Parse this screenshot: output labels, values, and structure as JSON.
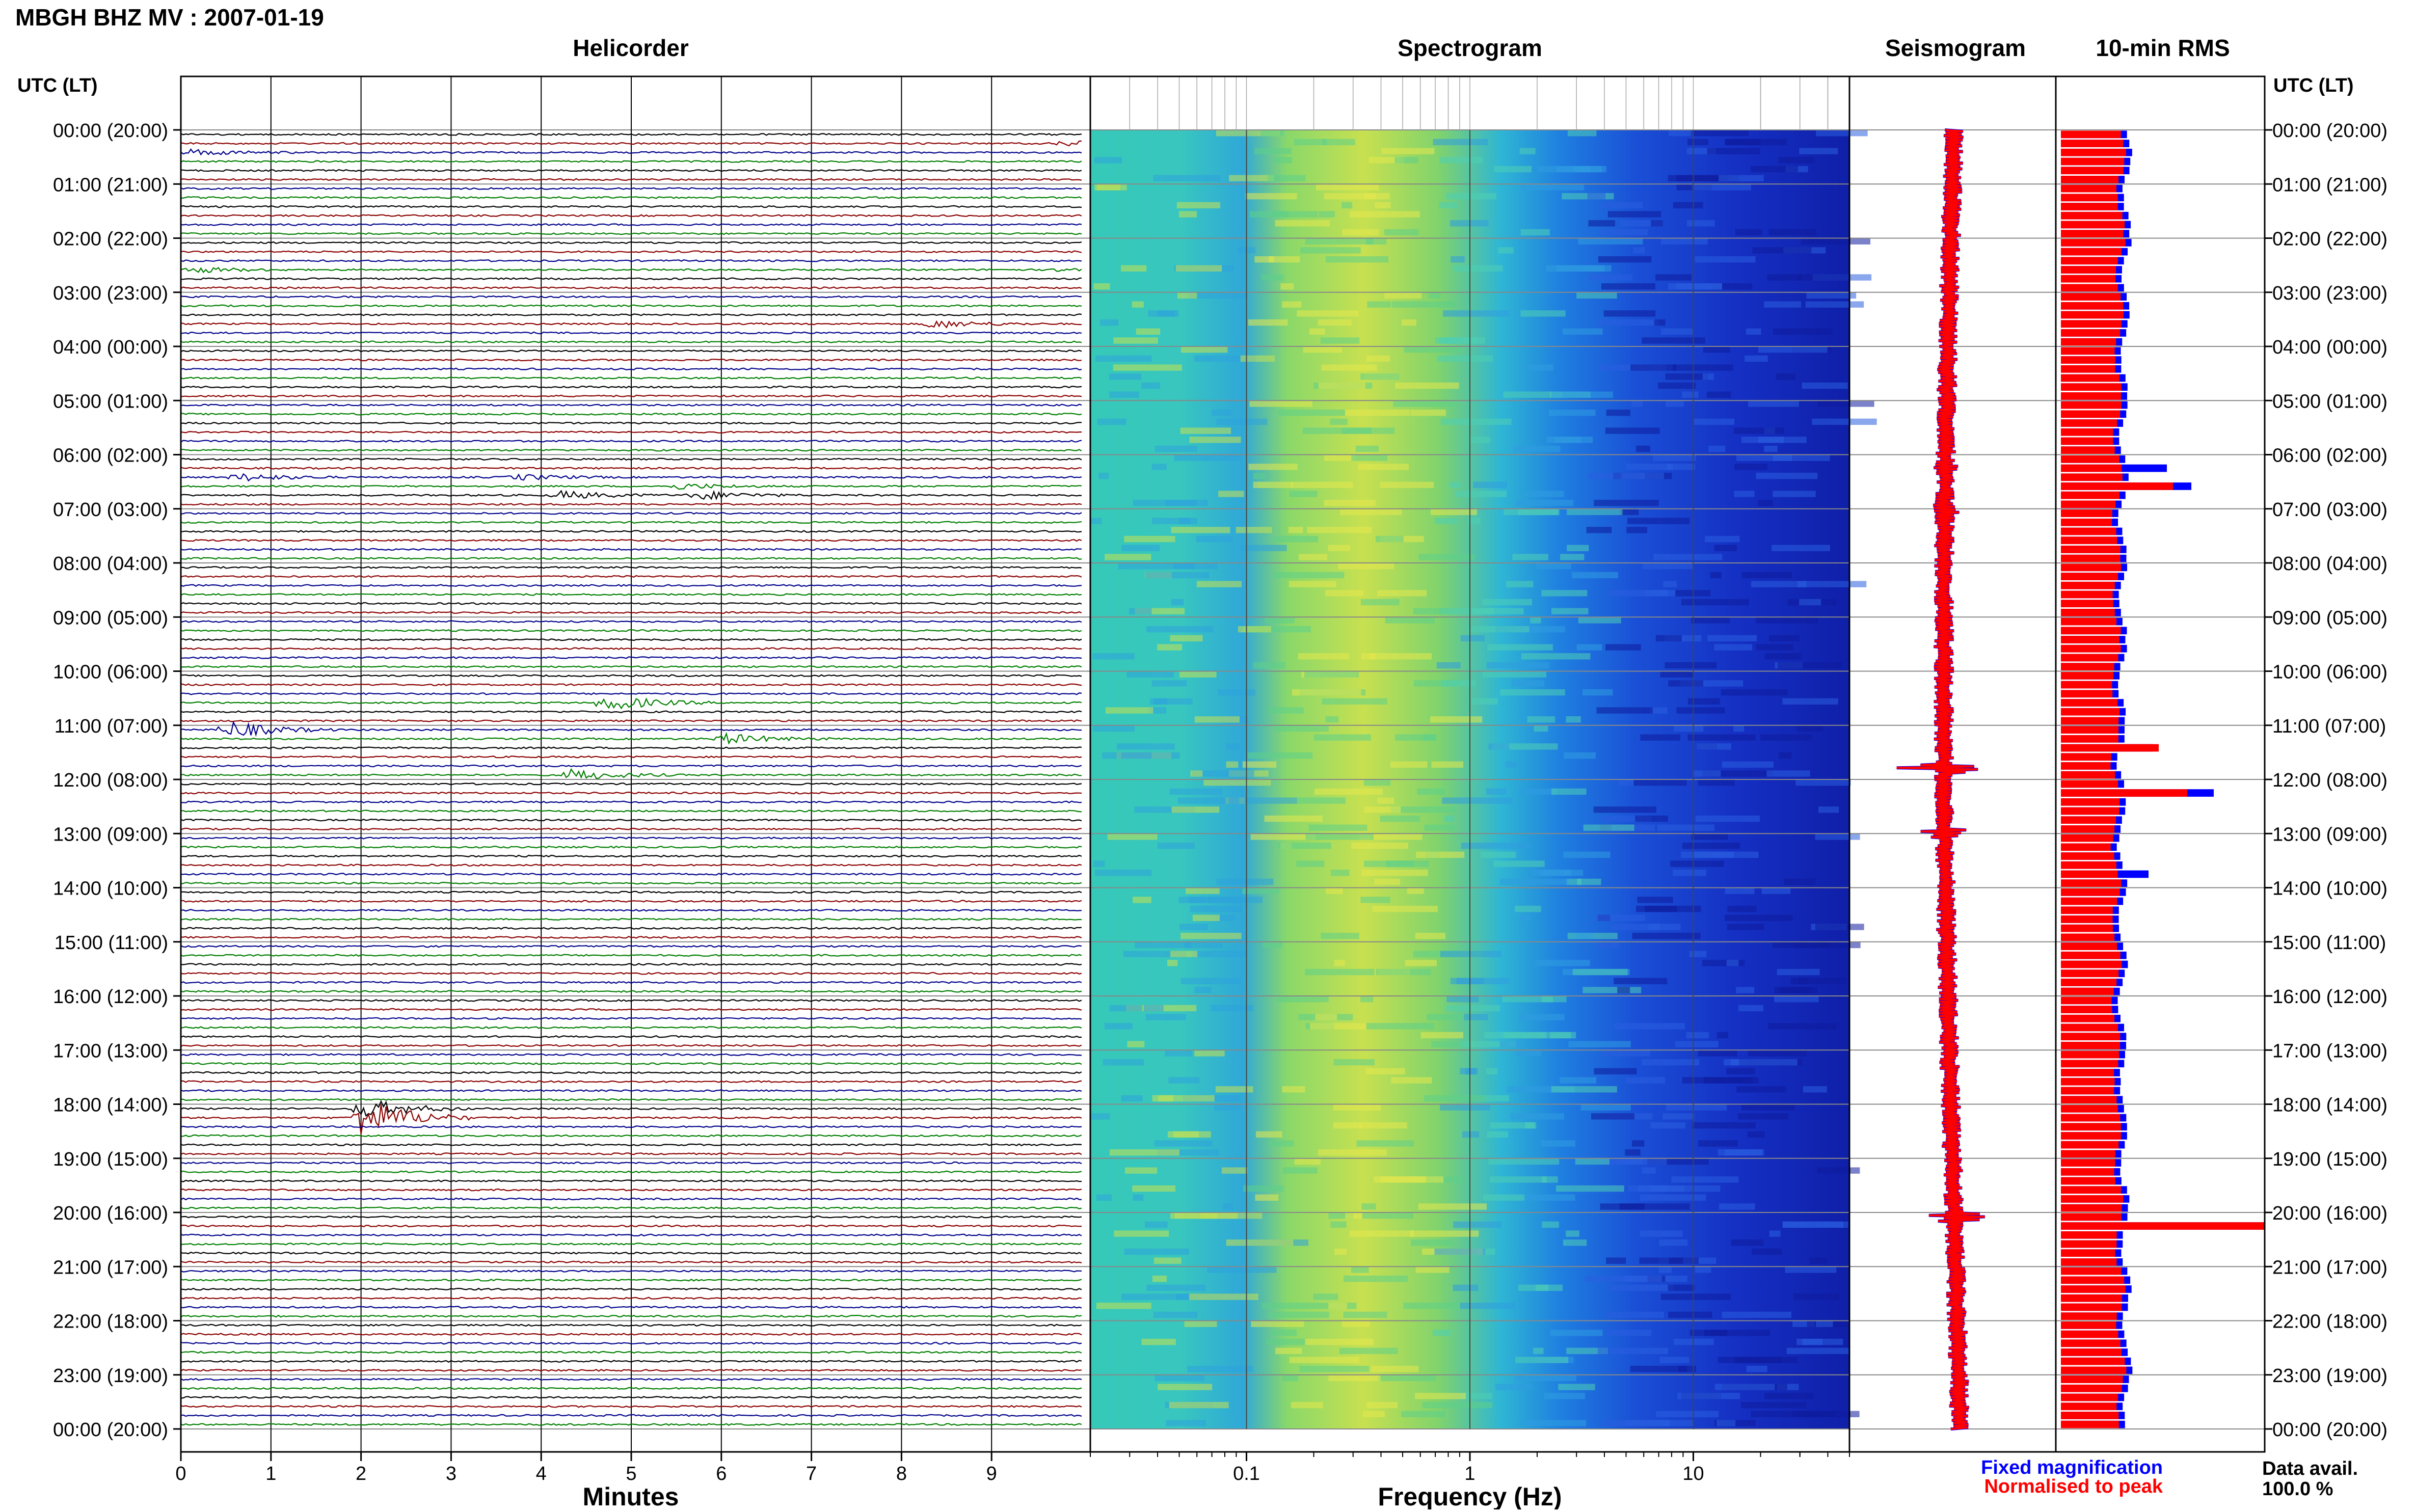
{
  "page_title": "MBGH BHZ MV : 2007-01-19",
  "panels": {
    "helicorder": "Helicorder",
    "spectrogram": "Spectrogram",
    "seismogram": "Seismogram",
    "rms": "10-min RMS"
  },
  "time_axis_label": "UTC (LT)",
  "hour_labels": [
    "00:00 (20:00)",
    "01:00 (21:00)",
    "02:00 (22:00)",
    "03:00 (23:00)",
    "04:00 (00:00)",
    "05:00 (01:00)",
    "06:00 (02:00)",
    "07:00 (03:00)",
    "08:00 (04:00)",
    "09:00 (05:00)",
    "10:00 (06:00)",
    "11:00 (07:00)",
    "12:00 (08:00)",
    "13:00 (09:00)",
    "14:00 (10:00)",
    "15:00 (11:00)",
    "16:00 (12:00)",
    "17:00 (13:00)",
    "18:00 (14:00)",
    "19:00 (15:00)",
    "20:00 (16:00)",
    "21:00 (17:00)",
    "22:00 (18:00)",
    "23:00 (19:00)",
    "00:00 (20:00)"
  ],
  "helicorder_xlabel": "Minutes",
  "minute_ticks": [
    "0",
    "1",
    "2",
    "3",
    "4",
    "5",
    "6",
    "7",
    "8",
    "9"
  ],
  "spectrogram_xlabel": "Frequency (Hz)",
  "freq_ticks": [
    "0.1",
    "1",
    "10"
  ],
  "legend": {
    "fixed": "Fixed magnification",
    "normalised": "Normalised to peak",
    "fixed_color": "#0000ff",
    "normalised_color": "#ff0000"
  },
  "data_avail_label": "Data avail.",
  "data_avail_value": "100.0 %",
  "chart_data": {
    "type": "helicorder",
    "trace_colors": [
      "#000000",
      "#8b0000",
      "#00008b",
      "#007f00"
    ],
    "rows_per_hour": 6,
    "hours": 24,
    "events": [
      {
        "row": 1,
        "minute": 9.8,
        "amp": 1.2
      },
      {
        "row": 2,
        "minute": 0.1,
        "amp": 1.0
      },
      {
        "row": 15,
        "minute": 0.1,
        "amp": 1.0
      },
      {
        "row": 15,
        "minute": 9.8,
        "amp": 1.0
      },
      {
        "row": 21,
        "minute": 8.3,
        "amp": 1.5
      },
      {
        "row": 38,
        "minute": 0.6,
        "amp": 1.4
      },
      {
        "row": 38,
        "minute": 3.7,
        "amp": 1.0
      },
      {
        "row": 39,
        "minute": 5.5,
        "amp": 1.0
      },
      {
        "row": 40,
        "minute": 4.2,
        "amp": 1.4
      },
      {
        "row": 40,
        "minute": 5.7,
        "amp": 1.6
      },
      {
        "row": 63,
        "minute": 4.7,
        "amp": 2.8
      },
      {
        "row": 66,
        "minute": 0.5,
        "amp": 3.0
      },
      {
        "row": 67,
        "minute": 6.0,
        "amp": 1.8
      },
      {
        "row": 71,
        "minute": 4.3,
        "amp": 2.0
      },
      {
        "row": 108,
        "minute": 2.0,
        "amp": 3.5
      },
      {
        "row": 109,
        "minute": 2.0,
        "amp": 7.0
      }
    ],
    "spectrogram": {
      "fmin": 0.02,
      "fmax": 50
    },
    "rms": {
      "fixed_base": 0.33,
      "fixed_peaks": [
        {
          "row": 37,
          "value": 0.52
        },
        {
          "row": 39,
          "value": 0.64
        },
        {
          "row": 68,
          "value": 0.45
        },
        {
          "row": 73,
          "value": 0.75
        },
        {
          "row": 82,
          "value": 0.43
        },
        {
          "row": 121,
          "value": 1.2
        }
      ],
      "normalised_peaks": [
        {
          "row": 39,
          "value": 0.55
        },
        {
          "row": 68,
          "value": 0.48
        },
        {
          "row": 73,
          "value": 0.62
        },
        {
          "row": 121,
          "value": 1.0
        }
      ],
      "normalised_base": 0.3
    }
  }
}
